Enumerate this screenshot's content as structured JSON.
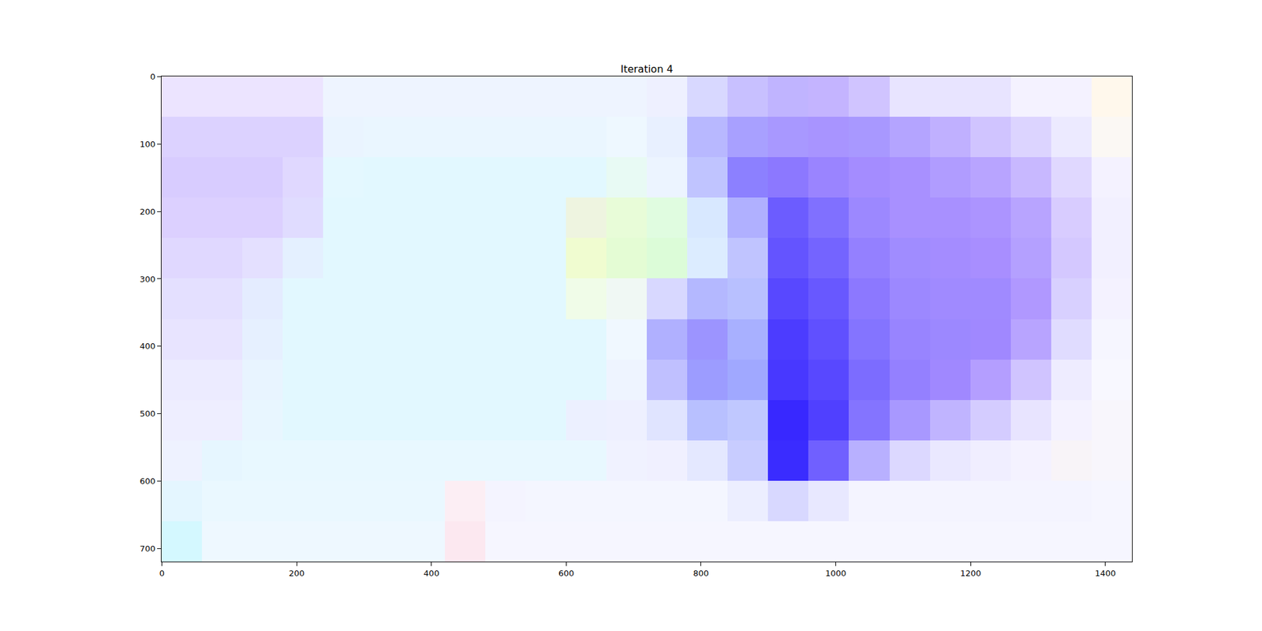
{
  "chart_data": {
    "type": "image",
    "title": "Iteration 4",
    "xlim": [
      -0.5,
      1439.5
    ],
    "ylim": [
      719.5,
      -0.5
    ],
    "xticks": [
      0,
      200,
      400,
      600,
      800,
      1000,
      1200,
      1400
    ],
    "yticks": [
      0,
      100,
      200,
      300,
      400,
      500,
      600,
      700
    ],
    "grid": false,
    "cells": [
      [
        "#ece4ff",
        "#ece4ff",
        "#ece4ff",
        "#ece4ff",
        "#eef4ff",
        "#eef4ff",
        "#eef4ff",
        "#eef4ff",
        "#eef4ff",
        "#eef4ff",
        "#eef4ff",
        "#eef4ff",
        "#eef0ff",
        "#d8d8ff",
        "#c8c0ff",
        "#c0b4ff",
        "#c4b4ff",
        "#d0c4ff",
        "#e8e4ff",
        "#e8e4ff",
        "#e8e4ff",
        "#f4f2ff",
        "#f4f2ff",
        "#fff8ec"
      ],
      [
        "#dcd2ff",
        "#dcd2ff",
        "#dcd2ff",
        "#dcd2ff",
        "#eaf4ff",
        "#eaf6ff",
        "#eaf6ff",
        "#eaf6ff",
        "#eaf6ff",
        "#eaf6ff",
        "#eaf6ff",
        "#eef8ff",
        "#e8f0ff",
        "#b8b8ff",
        "#a8a0ff",
        "#a898ff",
        "#a894ff",
        "#a898ff",
        "#b4a4ff",
        "#c0b0ff",
        "#d0c4ff",
        "#dcd4ff",
        "#eceaff",
        "#fbf8f4"
      ],
      [
        "#d8ccff",
        "#d8ccff",
        "#d8ccff",
        "#e0d8ff",
        "#e4f8ff",
        "#e2f8ff",
        "#e2f8ff",
        "#e2f8ff",
        "#e2f8ff",
        "#e2f8ff",
        "#e2f8ff",
        "#e8faf4",
        "#ecf4ff",
        "#c0c4ff",
        "#8c80ff",
        "#8c78ff",
        "#9a84ff",
        "#a48cff",
        "#a890ff",
        "#b09cff",
        "#b8a4ff",
        "#c8b8ff",
        "#e0d8ff",
        "#f4f2ff"
      ],
      [
        "#dcd0ff",
        "#dcd0ff",
        "#dcd0ff",
        "#e0dcff",
        "#e2f8ff",
        "#e2f8ff",
        "#e2f8ff",
        "#e2f8ff",
        "#e2f8ff",
        "#e2f8ff",
        "#eef4e0",
        "#e8fcd8",
        "#e0fce0",
        "#d8e8ff",
        "#b0b0ff",
        "#6c5cff",
        "#8070ff",
        "#9c88ff",
        "#a890ff",
        "#a890ff",
        "#ac94ff",
        "#b8a4ff",
        "#d8ccff",
        "#f2f0ff"
      ],
      [
        "#e0d8ff",
        "#e0d8ff",
        "#e4e0ff",
        "#e4f0ff",
        "#e2f8ff",
        "#e2f8ff",
        "#e2f8ff",
        "#e2f8ff",
        "#e2f8ff",
        "#e2f8ff",
        "#f0fcd0",
        "#e4fcd4",
        "#dcfcd8",
        "#dcecff",
        "#c0c4ff",
        "#6454ff",
        "#7464ff",
        "#9480ff",
        "#a08cff",
        "#a48cff",
        "#a88eff",
        "#b4a0ff",
        "#d4c8ff",
        "#f2f0ff"
      ],
      [
        "#e4e0ff",
        "#e4e0ff",
        "#e4ecff",
        "#e2f8ff",
        "#e2f8ff",
        "#e2f8ff",
        "#e2f8ff",
        "#e2f8ff",
        "#e2f8ff",
        "#e2f8ff",
        "#f0fce8",
        "#f0f8f4",
        "#d8d8ff",
        "#b4b8ff",
        "#b8c0ff",
        "#5848ff",
        "#6858ff",
        "#8c78ff",
        "#9c88ff",
        "#a08aff",
        "#a08aff",
        "#b098ff",
        "#d8d0ff",
        "#f4f2ff"
      ],
      [
        "#e8e4ff",
        "#e8e4ff",
        "#e6f0ff",
        "#e2f8ff",
        "#e2f8ff",
        "#e2f8ff",
        "#e2f8ff",
        "#e2f8ff",
        "#e2f8ff",
        "#e2f8ff",
        "#e2f8ff",
        "#f0f8ff",
        "#b0b0ff",
        "#9c94ff",
        "#a8b0ff",
        "#4c3cff",
        "#6050ff",
        "#8474ff",
        "#9884ff",
        "#9c88ff",
        "#a088ff",
        "#b8a4ff",
        "#e0dcff",
        "#f6f6ff"
      ],
      [
        "#ecebff",
        "#ecebff",
        "#e8f4ff",
        "#e2f8ff",
        "#e2f8ff",
        "#e2f8ff",
        "#e2f8ff",
        "#e2f8ff",
        "#e2f8ff",
        "#e2f8ff",
        "#e2f8ff",
        "#eef4ff",
        "#c0c0ff",
        "#9c9cff",
        "#a0a8ff",
        "#4838ff",
        "#5848ff",
        "#7c6cff",
        "#9480ff",
        "#a088ff",
        "#b49eff",
        "#d0c4ff",
        "#eeecff",
        "#f8f8ff"
      ],
      [
        "#eeeeff",
        "#eeeeff",
        "#e8f6ff",
        "#e2f8ff",
        "#e2f8ff",
        "#e2f8ff",
        "#e2f8ff",
        "#e2f8ff",
        "#e2f8ff",
        "#e2f8ff",
        "#ecf0ff",
        "#eef0ff",
        "#e0e4ff",
        "#b8c0ff",
        "#c0c8ff",
        "#3828ff",
        "#5040ff",
        "#8474ff",
        "#a898ff",
        "#c0b4ff",
        "#d4ccff",
        "#e8e4ff",
        "#f4f2ff",
        "#f8f6fc"
      ],
      [
        "#eef2ff",
        "#e6f6ff",
        "#e8f8ff",
        "#e8f8ff",
        "#e8f8ff",
        "#e8f8ff",
        "#e8f8ff",
        "#e8f8ff",
        "#e8f8ff",
        "#e8f8ff",
        "#e8f8ff",
        "#f0f2ff",
        "#f0f0ff",
        "#e4e8ff",
        "#c8ccff",
        "#3a2cff",
        "#7060ff",
        "#b8b0ff",
        "#dcd8ff",
        "#eae8ff",
        "#f0eeff",
        "#f4f2ff",
        "#f8f4f8",
        "#f8f6fc"
      ],
      [
        "#e4f6ff",
        "#eaf8ff",
        "#eaf8ff",
        "#eaf8ff",
        "#eaf8ff",
        "#eaf8ff",
        "#eaf8ff",
        "#fceef4",
        "#f4f4ff",
        "#f4f6ff",
        "#f4f6ff",
        "#f4f6ff",
        "#f4f6ff",
        "#f4f6ff",
        "#eceeff",
        "#d8d8ff",
        "#e8e8ff",
        "#f4f4ff",
        "#f4f4ff",
        "#f4f4ff",
        "#f4f4ff",
        "#f4f4ff",
        "#f4f4ff",
        "#f6f6ff"
      ],
      [
        "#d4f8ff",
        "#eef8ff",
        "#eef8ff",
        "#eef8ff",
        "#eef8ff",
        "#eef8ff",
        "#eef8ff",
        "#fce8f0",
        "#f6f6ff",
        "#f6f6ff",
        "#f6f6ff",
        "#f6f6ff",
        "#f6f6ff",
        "#f6f6ff",
        "#f6f6ff",
        "#f6f6ff",
        "#f6f6ff",
        "#f6f6ff",
        "#f6f6ff",
        "#f6f6ff",
        "#f6f6ff",
        "#f6f6ff",
        "#f6f6ff",
        "#f6f6ff"
      ]
    ]
  }
}
